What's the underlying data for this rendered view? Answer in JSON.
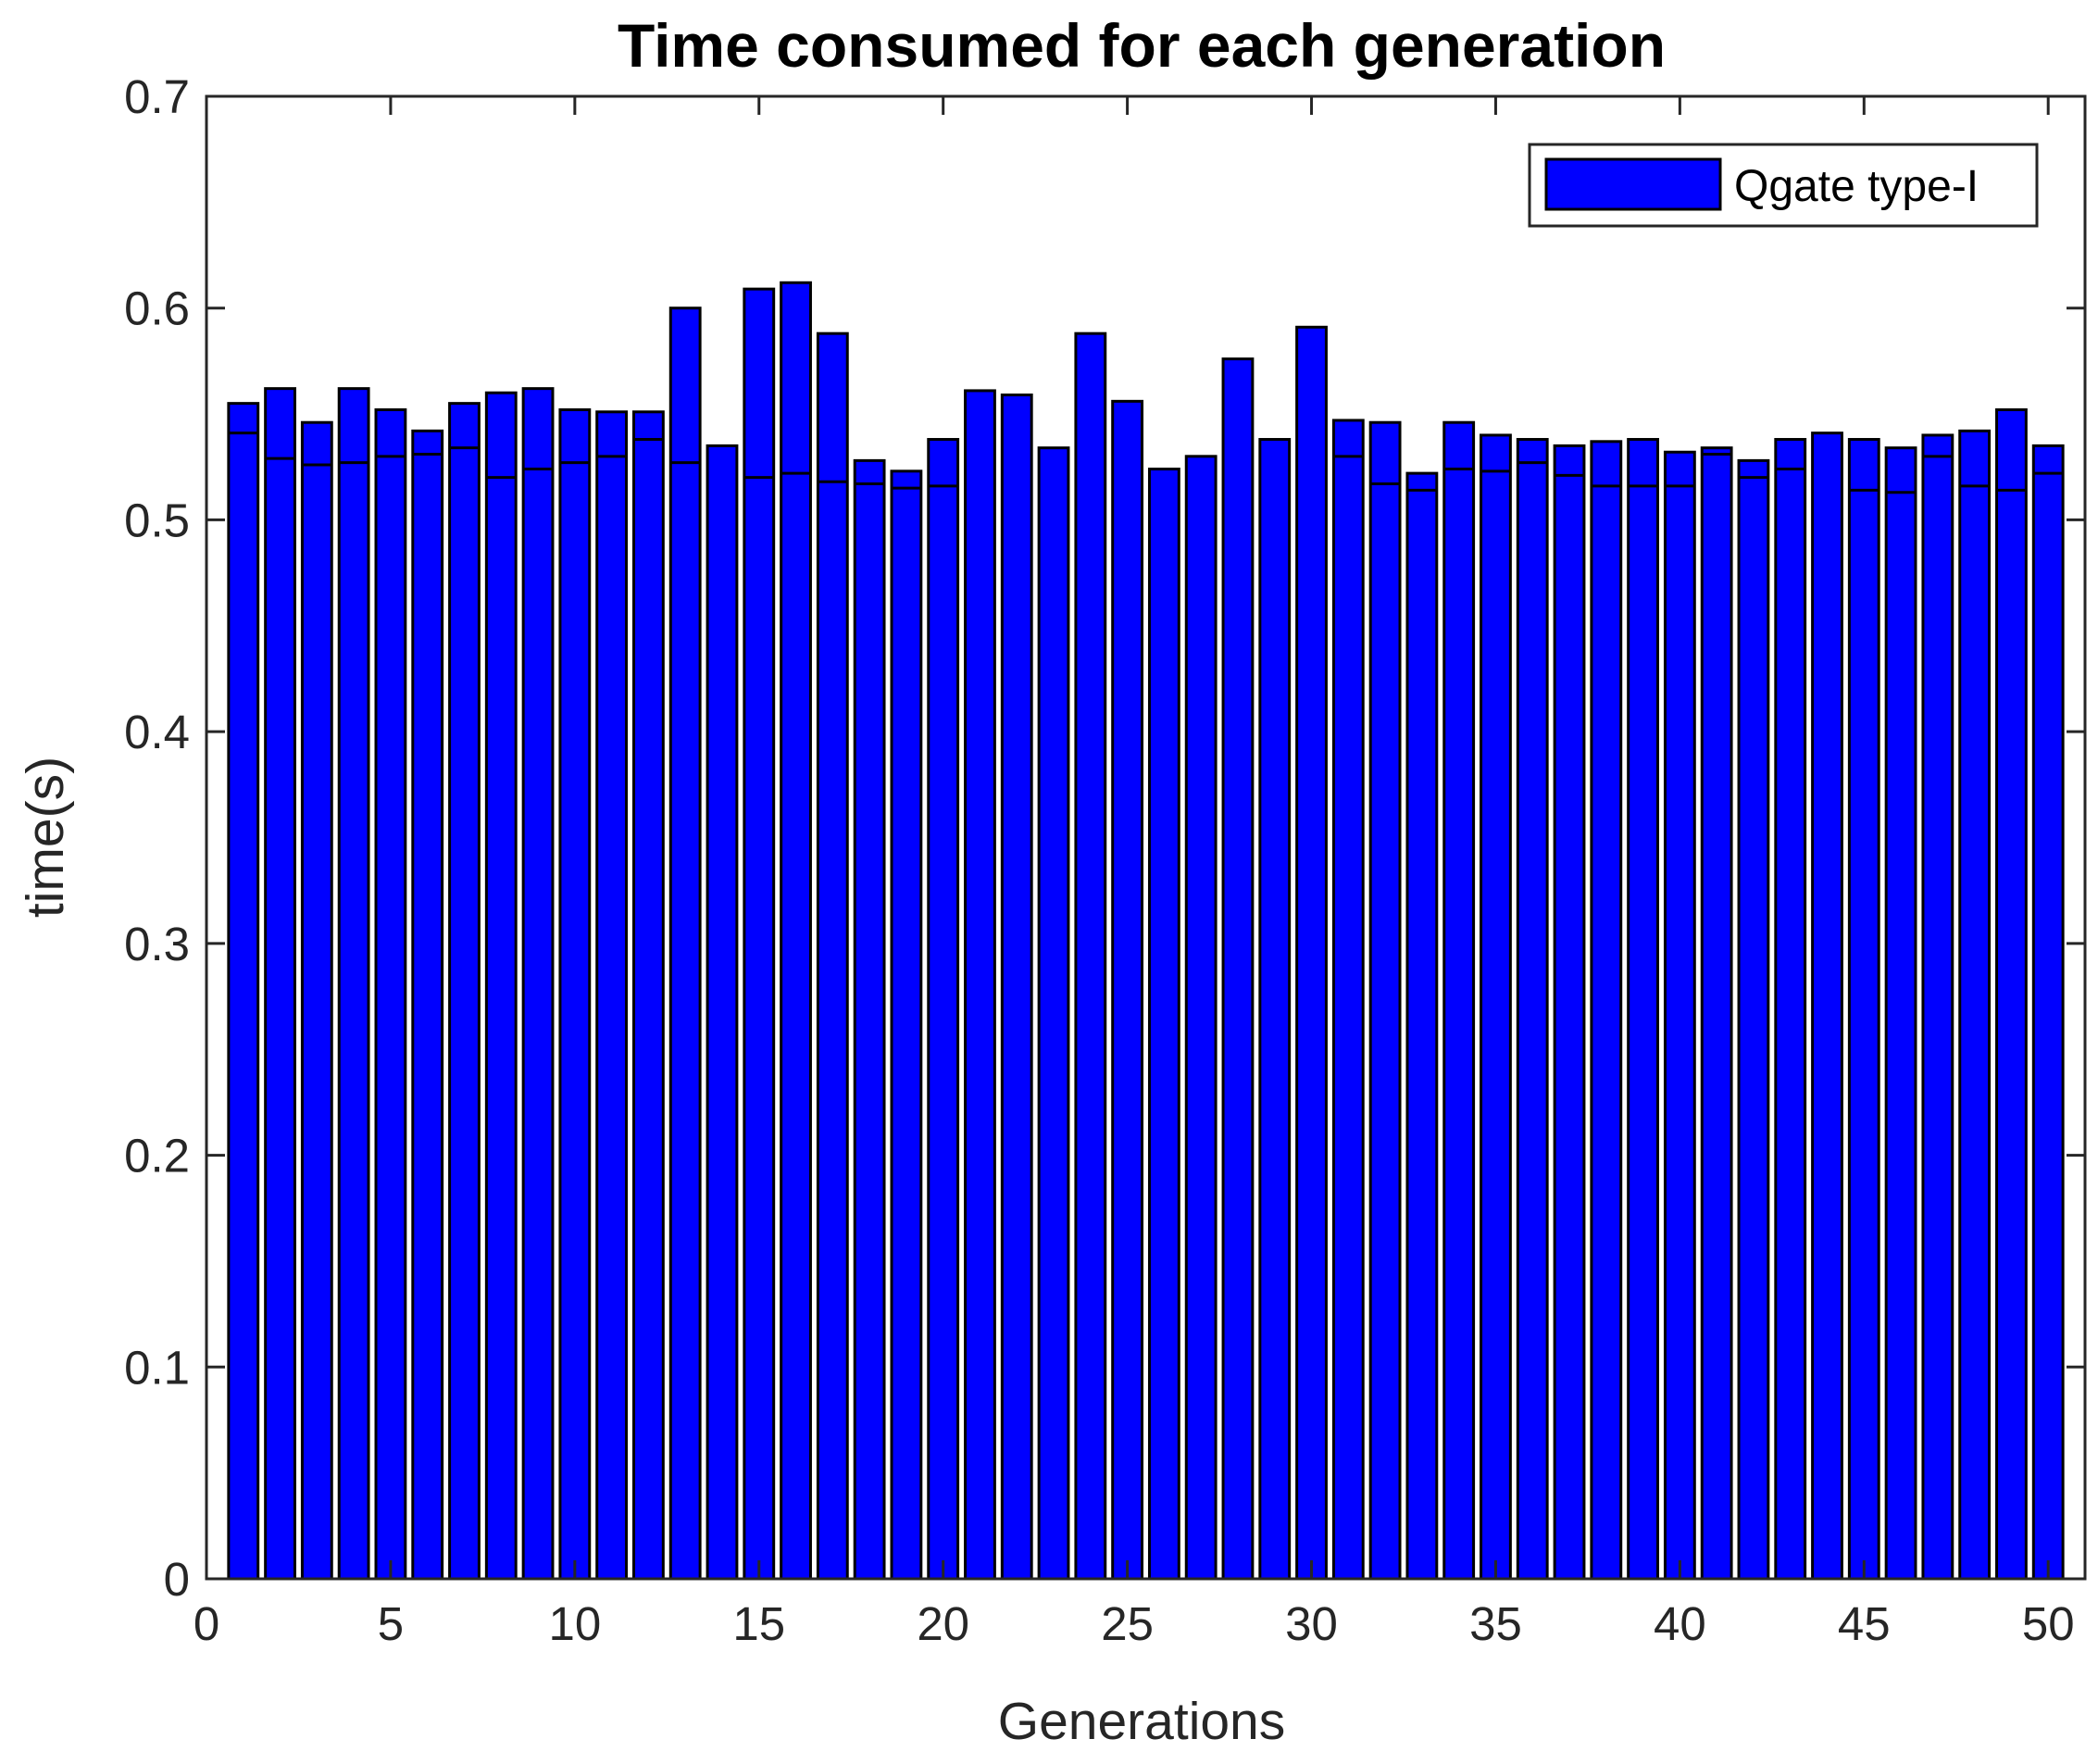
{
  "chart_data": {
    "type": "bar",
    "title": "Time consumed for each generation",
    "xlabel": "Generations",
    "ylabel": "time(s)",
    "xlim": [
      0,
      51
    ],
    "ylim": [
      0,
      0.7
    ],
    "xticks": [
      "0",
      "5",
      "10",
      "15",
      "20",
      "25",
      "30",
      "35",
      "40",
      "45",
      "50"
    ],
    "yticks": [
      "0",
      "0.1",
      "0.2",
      "0.3",
      "0.4",
      "0.5",
      "0.6",
      "0.7"
    ],
    "grid": false,
    "legend_position": "top-right",
    "x": [
      1,
      2,
      3,
      4,
      5,
      6,
      7,
      8,
      9,
      10,
      11,
      12,
      13,
      14,
      15,
      16,
      17,
      18,
      19,
      20,
      21,
      22,
      23,
      24,
      25,
      26,
      27,
      28,
      29,
      30,
      31,
      32,
      33,
      34,
      35,
      36,
      37,
      38,
      39,
      40,
      41,
      42,
      43,
      44,
      45,
      46,
      47,
      48,
      49,
      50
    ],
    "series": [
      {
        "name": "Qgate type-I",
        "color": "#0000ff",
        "values": [
          0.555,
          0.562,
          0.546,
          0.562,
          0.552,
          0.542,
          0.555,
          0.56,
          0.562,
          0.552,
          0.551,
          0.551,
          0.6,
          0.535,
          0.609,
          0.612,
          0.588,
          0.528,
          0.523,
          0.538,
          0.561,
          0.559,
          0.534,
          0.588,
          0.556,
          0.524,
          0.53,
          0.576,
          0.538,
          0.591,
          0.547,
          0.546,
          0.522,
          0.546,
          0.54,
          0.538,
          0.535,
          0.537,
          0.538,
          0.532,
          0.534,
          0.528,
          0.538,
          0.541,
          0.538,
          0.534,
          0.54,
          0.542,
          0.552,
          0.535
        ],
        "inner_segment_values": [
          0.541,
          0.529,
          0.526,
          0.527,
          0.53,
          0.531,
          0.534,
          0.52,
          0.524,
          0.527,
          0.53,
          0.538,
          0.527,
          0.535,
          0.52,
          0.522,
          0.518,
          0.517,
          0.515,
          0.516,
          0.561,
          0.559,
          0.534,
          0.588,
          0.556,
          0.524,
          0.53,
          0.576,
          0.538,
          0.591,
          0.53,
          0.517,
          0.514,
          0.524,
          0.523,
          0.527,
          0.521,
          0.516,
          0.516,
          0.516,
          0.531,
          0.52,
          0.524,
          0.541,
          0.514,
          0.513,
          0.53,
          0.516,
          0.514,
          0.522
        ]
      }
    ],
    "legend": [
      "Qgate type-I"
    ]
  }
}
